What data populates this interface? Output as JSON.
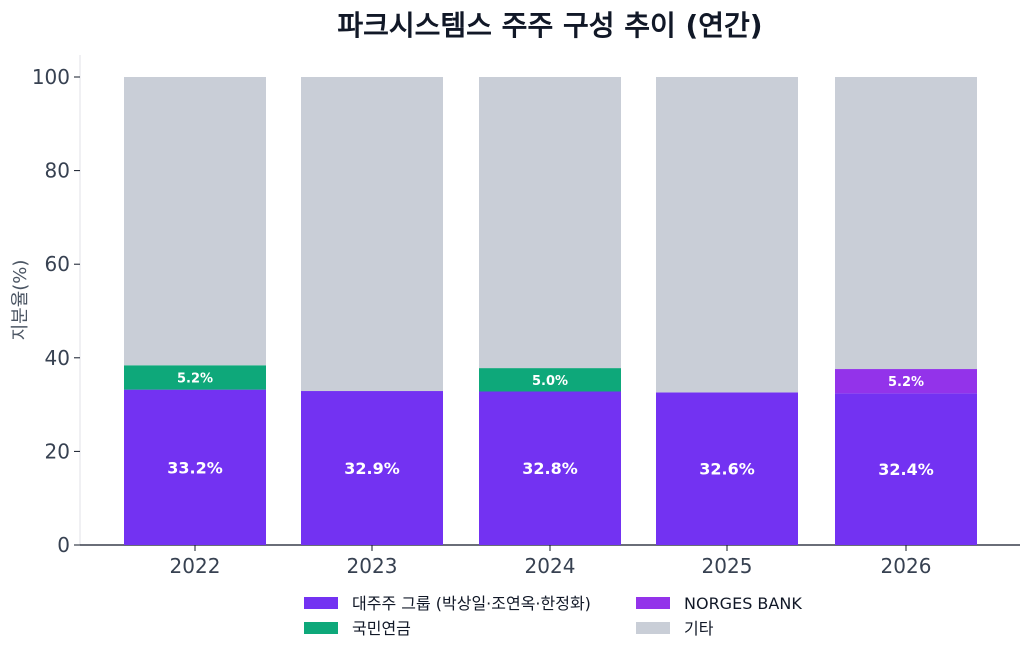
{
  "chart_data": {
    "type": "bar",
    "stacked": true,
    "title": "파크시스템스 주주 구성 추이 (연간)",
    "xlabel": "",
    "ylabel": "지분율(%)",
    "ylim": [
      0,
      100
    ],
    "yticks": [
      0,
      20,
      40,
      60,
      80,
      100
    ],
    "categories": [
      "2022",
      "2023",
      "2024",
      "2025",
      "2026"
    ],
    "series": [
      {
        "name": "대주주 그룹 (박상일·조연옥·한정화)",
        "color": "#7332F2",
        "values": [
          33.2,
          32.9,
          32.8,
          32.6,
          32.4
        ],
        "labels": [
          "33.2%",
          "32.9%",
          "32.8%",
          "32.6%",
          "32.4%"
        ]
      },
      {
        "name": "국민연금",
        "color": "#0EA87A",
        "values": [
          5.2,
          0,
          5.0,
          0,
          0
        ],
        "labels": [
          "5.2%",
          "",
          "5.0%",
          "",
          ""
        ]
      },
      {
        "name": "NORGES BANK",
        "color": "#9333EA",
        "values": [
          0,
          0,
          0,
          0,
          5.2
        ],
        "labels": [
          "",
          "",
          "",
          "",
          "5.2%"
        ]
      },
      {
        "name": "기타",
        "color": "#C9CED7",
        "values": [
          61.6,
          67.1,
          62.2,
          67.4,
          62.4
        ],
        "labels": [
          "",
          "",
          "",
          "",
          ""
        ]
      }
    ],
    "legend": {
      "placement": "bottom",
      "order": [
        0,
        2,
        1,
        3
      ]
    }
  }
}
